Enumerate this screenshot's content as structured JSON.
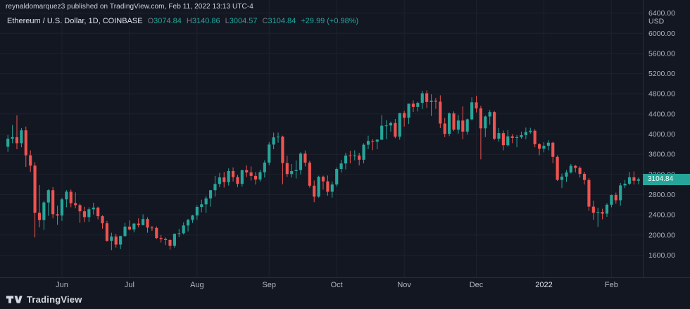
{
  "header": {
    "attribution": "reynaldomarquez3 published on TradingView.com, Feb 11, 2022 13:13 UTC-4"
  },
  "legend": {
    "symbol": "Ethereum / U.S. Dollar, 1D, COINBASE",
    "open_label": "O",
    "open_value": "3074.84",
    "high_label": "H",
    "high_value": "3140.86",
    "low_label": "L",
    "low_value": "3004.57",
    "close_label": "C",
    "close_value": "3104.84",
    "change": "+29.99 (+0.98%)"
  },
  "price_scale": {
    "labels": [
      "6400.00",
      "6000.00",
      "5600.00",
      "5200.00",
      "4800.00",
      "4400.00",
      "4000.00",
      "3600.00",
      "3200.00",
      "2800.00",
      "2400.00",
      "2000.00",
      "1600.00"
    ],
    "currency": "USD",
    "last_price": "3104.84"
  },
  "footer": {
    "logo_text": "TradingView"
  },
  "colors": {
    "background": "#131722",
    "up": "#26a69a",
    "down": "#ef5350",
    "grid": "#1e222d",
    "border": "#2a2e39",
    "axis_text": "#b2b5be",
    "axis_text_bright": "#dfe3ec",
    "badge_bg": "#26a69a",
    "badge_text": "#ffffff"
  },
  "chart_data": {
    "type": "candlestick",
    "title": "Ethereum / U.S. Dollar",
    "exchange": "COINBASE",
    "interval": "1D",
    "ylabel": "USD",
    "ylim": [
      1160,
      6660
    ],
    "grid_min": 1600,
    "grid_max": 6400,
    "grid_step": 400,
    "legend_position": "top-left",
    "month_ticks": [
      {
        "label": "Jun",
        "index": 12
      },
      {
        "label": "Jul",
        "index": 27
      },
      {
        "label": "Aug",
        "index": 42
      },
      {
        "label": "Sep",
        "index": 58
      },
      {
        "label": "Oct",
        "index": 73
      },
      {
        "label": "Nov",
        "index": 88
      },
      {
        "label": "Dec",
        "index": 104
      },
      {
        "label": "2022",
        "index": 119,
        "major": true
      },
      {
        "label": "Feb",
        "index": 134
      }
    ],
    "candles": [
      [
        3750,
        3983,
        3650,
        3910
      ],
      [
        3910,
        4180,
        3820,
        3940
      ],
      [
        3940,
        4372,
        3700,
        3820
      ],
      [
        3820,
        4120,
        3740,
        4075
      ],
      [
        4075,
        4150,
        3350,
        3580
      ],
      [
        3580,
        3680,
        3250,
        3375
      ],
      [
        3375,
        3440,
        1950,
        2440
      ],
      [
        2440,
        2990,
        2150,
        2295
      ],
      [
        2295,
        2675,
        2100,
        2645
      ],
      [
        2645,
        2910,
        2380,
        2888
      ],
      [
        2888,
        2950,
        2330,
        2412
      ],
      [
        2412,
        2580,
        2200,
        2385
      ],
      [
        2385,
        2740,
        2280,
        2706
      ],
      [
        2706,
        2890,
        2550,
        2857
      ],
      [
        2857,
        2900,
        2550,
        2630
      ],
      [
        2630,
        2845,
        2530,
        2592
      ],
      [
        2592,
        2620,
        2240,
        2470
      ],
      [
        2470,
        2560,
        2255,
        2354
      ],
      [
        2354,
        2550,
        2260,
        2510
      ],
      [
        2510,
        2640,
        2405,
        2543
      ],
      [
        2543,
        2560,
        2310,
        2373
      ],
      [
        2373,
        2390,
        2125,
        2232
      ],
      [
        2232,
        2280,
        1865,
        1886
      ],
      [
        1886,
        2045,
        1700,
        1968
      ],
      [
        1968,
        2020,
        1750,
        1809
      ],
      [
        1809,
        1985,
        1720,
        1980
      ],
      [
        1980,
        2240,
        1960,
        2166
      ],
      [
        2166,
        2290,
        2090,
        2108
      ],
      [
        2108,
        2240,
        2050,
        2226
      ],
      [
        2226,
        2330,
        2150,
        2196
      ],
      [
        2196,
        2410,
        2190,
        2316
      ],
      [
        2316,
        2350,
        2045,
        2146
      ],
      [
        2146,
        2180,
        2080,
        2140
      ],
      [
        2140,
        2170,
        1918,
        1940
      ],
      [
        1940,
        2000,
        1850,
        1919
      ],
      [
        1919,
        1950,
        1800,
        1900
      ],
      [
        1900,
        1920,
        1710,
        1786
      ],
      [
        1786,
        2030,
        1747,
        2024
      ],
      [
        2024,
        2120,
        1955,
        2034
      ],
      [
        2034,
        2250,
        2010,
        2189
      ],
      [
        2189,
        2320,
        2070,
        2299
      ],
      [
        2299,
        2400,
        2240,
        2386
      ],
      [
        2386,
        2590,
        2300,
        2556
      ],
      [
        2556,
        2700,
        2450,
        2608
      ],
      [
        2608,
        2770,
        2440,
        2725
      ],
      [
        2725,
        2890,
        2560,
        2888
      ],
      [
        2888,
        3170,
        2760,
        3012
      ],
      [
        3012,
        3230,
        2950,
        3141
      ],
      [
        3141,
        3250,
        2940,
        3048
      ],
      [
        3048,
        3320,
        2980,
        3268
      ],
      [
        3268,
        3340,
        3060,
        3148
      ],
      [
        3148,
        3190,
        2950,
        3014
      ],
      [
        3014,
        3290,
        2960,
        3286
      ],
      [
        3286,
        3380,
        3150,
        3240
      ],
      [
        3240,
        3360,
        3080,
        3172
      ],
      [
        3172,
        3250,
        3000,
        3100
      ],
      [
        3100,
        3290,
        3060,
        3244
      ],
      [
        3244,
        3480,
        3140,
        3434
      ],
      [
        3434,
        3840,
        3380,
        3793
      ],
      [
        3793,
        4030,
        3700,
        3936
      ],
      [
        3936,
        4030,
        3830,
        3950
      ],
      [
        3950,
        3970,
        3005,
        3425
      ],
      [
        3425,
        3570,
        3150,
        3209
      ],
      [
        3209,
        3410,
        3140,
        3268
      ],
      [
        3268,
        3480,
        3120,
        3287
      ],
      [
        3287,
        3640,
        3200,
        3614
      ],
      [
        3614,
        3675,
        3360,
        3434
      ],
      [
        3434,
        3470,
        2940,
        2977
      ],
      [
        2977,
        3080,
        2650,
        2760
      ],
      [
        2760,
        3175,
        2740,
        3155
      ],
      [
        3155,
        3175,
        2900,
        3063
      ],
      [
        3063,
        3180,
        2780,
        2857
      ],
      [
        2857,
        3060,
        2740,
        3001
      ],
      [
        3001,
        3340,
        2960,
        3310
      ],
      [
        3310,
        3490,
        3240,
        3418
      ],
      [
        3418,
        3630,
        3300,
        3575
      ],
      [
        3575,
        3670,
        3420,
        3561
      ],
      [
        3561,
        3680,
        3480,
        3576
      ],
      [
        3576,
        3630,
        3380,
        3492
      ],
      [
        3492,
        3820,
        3420,
        3790
      ],
      [
        3790,
        3970,
        3700,
        3865
      ],
      [
        3865,
        3900,
        3680,
        3850
      ],
      [
        3850,
        3900,
        3700,
        3890
      ],
      [
        3890,
        4375,
        3880,
        4167
      ],
      [
        4167,
        4280,
        3900,
        4172
      ],
      [
        4172,
        4250,
        4050,
        4220
      ],
      [
        4220,
        4300,
        3920,
        3950
      ],
      [
        3950,
        4420,
        3890,
        4417
      ],
      [
        4417,
        4460,
        4150,
        4324
      ],
      [
        4324,
        4600,
        4200,
        4604
      ],
      [
        4604,
        4670,
        4440,
        4540
      ],
      [
        4540,
        4640,
        4450,
        4620
      ],
      [
        4620,
        4860,
        4500,
        4810
      ],
      [
        4810,
        4868,
        4520,
        4638
      ],
      [
        4638,
        4790,
        4360,
        4665
      ],
      [
        4665,
        4720,
        4500,
        4644
      ],
      [
        4644,
        4770,
        4120,
        4210
      ],
      [
        4210,
        4320,
        3940,
        4007
      ],
      [
        4007,
        4430,
        3960,
        4411
      ],
      [
        4411,
        4450,
        4060,
        4088
      ],
      [
        4088,
        4380,
        4010,
        4270
      ],
      [
        4270,
        4550,
        3900,
        4050
      ],
      [
        4050,
        4310,
        3990,
        4294
      ],
      [
        4294,
        4730,
        4270,
        4631
      ],
      [
        4631,
        4760,
        4430,
        4510
      ],
      [
        4510,
        4560,
        3500,
        4115
      ],
      [
        4115,
        4370,
        3940,
        4350
      ],
      [
        4350,
        4480,
        4190,
        4438
      ],
      [
        4438,
        4460,
        3880,
        3910
      ],
      [
        3910,
        4120,
        3850,
        4020
      ],
      [
        4020,
        4070,
        3680,
        3781
      ],
      [
        3781,
        4080,
        3750,
        3956
      ],
      [
        3956,
        4000,
        3820,
        3925
      ],
      [
        3925,
        3980,
        3740,
        3940
      ],
      [
        3940,
        4050,
        3910,
        3980
      ],
      [
        3980,
        4130,
        3900,
        4042
      ],
      [
        4042,
        4125,
        4010,
        4067
      ],
      [
        4067,
        4100,
        3740,
        3800
      ],
      [
        3800,
        3820,
        3580,
        3710
      ],
      [
        3710,
        3840,
        3640,
        3769
      ],
      [
        3769,
        3880,
        3680,
        3830
      ],
      [
        3830,
        3850,
        3420,
        3550
      ],
      [
        3550,
        3580,
        3070,
        3092
      ],
      [
        3092,
        3220,
        2930,
        3157
      ],
      [
        3157,
        3290,
        3050,
        3240
      ],
      [
        3240,
        3410,
        3220,
        3371
      ],
      [
        3371,
        3390,
        3240,
        3330
      ],
      [
        3330,
        3360,
        3140,
        3212
      ],
      [
        3212,
        3250,
        3000,
        3090
      ],
      [
        3090,
        3130,
        2480,
        2562
      ],
      [
        2562,
        2680,
        2300,
        2440
      ],
      [
        2440,
        2540,
        2160,
        2455
      ],
      [
        2455,
        2520,
        2310,
        2423
      ],
      [
        2423,
        2630,
        2360,
        2600
      ],
      [
        2600,
        2800,
        2550,
        2793
      ],
      [
        2793,
        2840,
        2620,
        2688
      ],
      [
        2688,
        3030,
        2580,
        2983
      ],
      [
        2983,
        3090,
        2930,
        3016
      ],
      [
        3016,
        3250,
        2990,
        3144
      ],
      [
        3144,
        3260,
        3000,
        3076
      ],
      [
        3074.84,
        3140.86,
        3004.57,
        3104.84
      ]
    ]
  }
}
